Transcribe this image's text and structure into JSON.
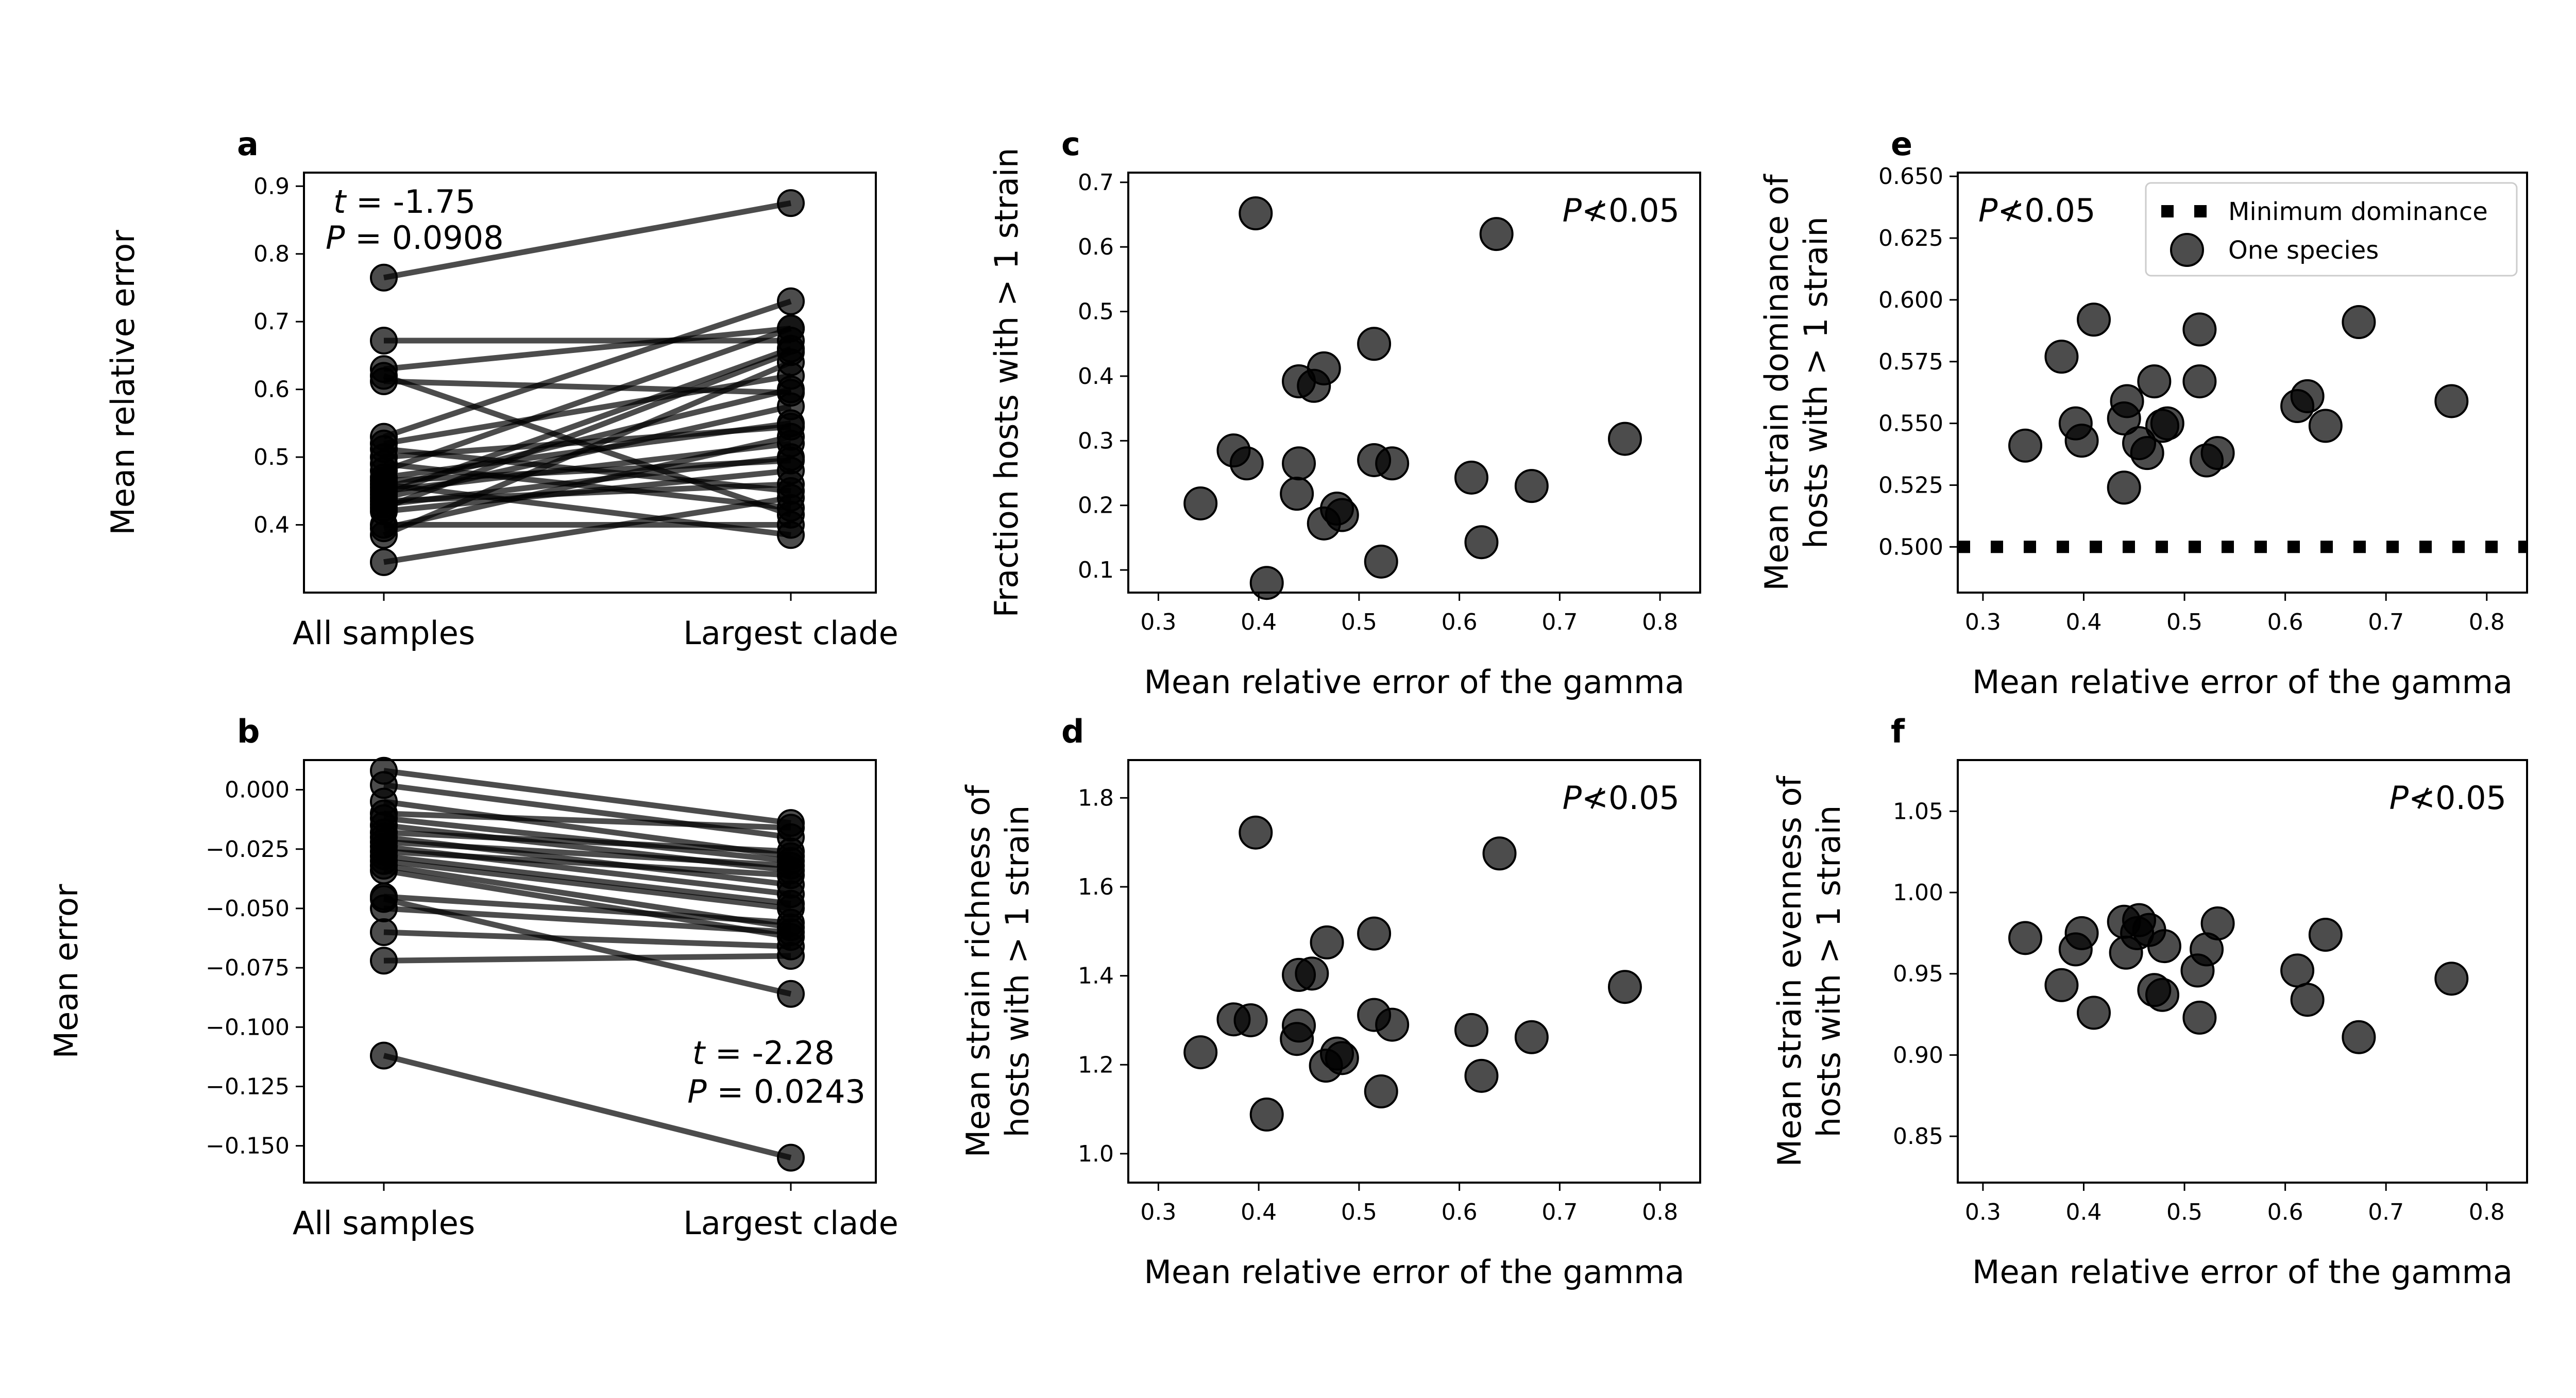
{
  "chart_data": [
    {
      "panel": "a",
      "type": "line",
      "xlabel": "",
      "ylabel": "Mean relative error",
      "categories": [
        "All samples",
        "Largest clade"
      ],
      "ylim": [
        0.3,
        0.92
      ],
      "yticks": [
        0.4,
        0.5,
        0.6,
        0.7,
        0.8,
        0.9
      ],
      "yticklabels": [
        "0.4",
        "0.5",
        "0.6",
        "0.7",
        "0.8",
        "0.9"
      ],
      "stat_t": "t = -1.75",
      "stat_p": "P = 0.0908",
      "pairs": [
        [
          0.765,
          0.875
        ],
        [
          0.672,
          0.672
        ],
        [
          0.63,
          0.69
        ],
        [
          0.62,
          0.415
        ],
        [
          0.612,
          0.595
        ],
        [
          0.53,
          0.73
        ],
        [
          0.52,
          0.62
        ],
        [
          0.512,
          0.45
        ],
        [
          0.5,
          0.545
        ],
        [
          0.49,
          0.425
        ],
        [
          0.48,
          0.69
        ],
        [
          0.47,
          0.55
        ],
        [
          0.465,
          0.495
        ],
        [
          0.46,
          0.385
        ],
        [
          0.455,
          0.6
        ],
        [
          0.45,
          0.52
        ],
        [
          0.445,
          0.66
        ],
        [
          0.44,
          0.575
        ],
        [
          0.435,
          0.46
        ],
        [
          0.43,
          0.5
        ],
        [
          0.425,
          0.655
        ],
        [
          0.42,
          0.48
        ],
        [
          0.4,
          0.4
        ],
        [
          0.395,
          0.53
        ],
        [
          0.385,
          0.64
        ],
        [
          0.345,
          0.44
        ]
      ]
    },
    {
      "panel": "b",
      "type": "line",
      "xlabel": "",
      "ylabel": "Mean error",
      "categories": [
        "All samples",
        "Largest clade"
      ],
      "ylim": [
        -0.1655,
        0.0125
      ],
      "yticks": [
        0.0,
        -0.025,
        -0.05,
        -0.075,
        -0.1,
        -0.125,
        -0.15
      ],
      "yticklabels": [
        "0.000",
        "−0.025",
        "−0.050",
        "−0.075",
        "−0.100",
        "−0.125",
        "−0.150"
      ],
      "stat_t": "t = -2.28",
      "stat_p": "P = 0.0243",
      "pairs": [
        [
          0.008,
          -0.014
        ],
        [
          0.002,
          -0.02
        ],
        [
          -0.005,
          -0.028
        ],
        [
          -0.01,
          -0.016
        ],
        [
          -0.012,
          -0.03
        ],
        [
          -0.015,
          -0.034
        ],
        [
          -0.018,
          -0.026
        ],
        [
          -0.02,
          -0.04
        ],
        [
          -0.022,
          -0.032
        ],
        [
          -0.024,
          -0.044
        ],
        [
          -0.026,
          -0.036
        ],
        [
          -0.028,
          -0.048
        ],
        [
          -0.03,
          -0.05
        ],
        [
          -0.032,
          -0.058
        ],
        [
          -0.034,
          -0.062
        ],
        [
          -0.045,
          -0.056
        ],
        [
          -0.05,
          -0.06
        ],
        [
          -0.06,
          -0.066
        ],
        [
          -0.046,
          -0.086
        ],
        [
          -0.072,
          -0.07
        ],
        [
          -0.112,
          -0.155
        ]
      ]
    },
    {
      "panel": "c",
      "type": "scatter",
      "xlabel": "Mean relative error of the gamma",
      "ylabel": "Fraction hosts with > 1 strain",
      "xlim": [
        0.27,
        0.84
      ],
      "ylim": [
        0.065,
        0.715
      ],
      "xticks": [
        0.3,
        0.4,
        0.5,
        0.6,
        0.7,
        0.8
      ],
      "xticklabels": [
        "0.3",
        "0.4",
        "0.5",
        "0.6",
        "0.7",
        "0.8"
      ],
      "yticks": [
        0.1,
        0.2,
        0.3,
        0.4,
        0.5,
        0.6,
        0.7
      ],
      "yticklabels": [
        "0.1",
        "0.2",
        "0.3",
        "0.4",
        "0.5",
        "0.6",
        "0.7"
      ],
      "annotation": "P≮0.05",
      "points": [
        [
          0.397,
          0.652
        ],
        [
          0.637,
          0.62
        ],
        [
          0.44,
          0.392
        ],
        [
          0.465,
          0.412
        ],
        [
          0.455,
          0.385
        ],
        [
          0.515,
          0.45
        ],
        [
          0.375,
          0.285
        ],
        [
          0.388,
          0.265
        ],
        [
          0.44,
          0.265
        ],
        [
          0.515,
          0.27
        ],
        [
          0.533,
          0.265
        ],
        [
          0.342,
          0.203
        ],
        [
          0.438,
          0.218
        ],
        [
          0.478,
          0.195
        ],
        [
          0.483,
          0.185
        ],
        [
          0.465,
          0.172
        ],
        [
          0.522,
          0.113
        ],
        [
          0.408,
          0.08
        ],
        [
          0.612,
          0.243
        ],
        [
          0.672,
          0.23
        ],
        [
          0.765,
          0.303
        ],
        [
          0.622,
          0.143
        ]
      ]
    },
    {
      "panel": "d",
      "type": "scatter",
      "xlabel": "Mean relative error of the gamma",
      "ylabel": "Mean strain richness of hosts with > 1 strain",
      "xlim": [
        0.27,
        0.84
      ],
      "ylim": [
        0.935,
        1.885
      ],
      "xticks": [
        0.3,
        0.4,
        0.5,
        0.6,
        0.7,
        0.8
      ],
      "xticklabels": [
        "0.3",
        "0.4",
        "0.5",
        "0.6",
        "0.7",
        "0.8"
      ],
      "yticks": [
        1.0,
        1.2,
        1.4,
        1.6,
        1.8
      ],
      "yticklabels": [
        "1.0",
        "1.2",
        "1.4",
        "1.6",
        "1.8"
      ],
      "annotation": "P≮0.05",
      "points": [
        [
          0.397,
          1.722
        ],
        [
          0.64,
          1.675
        ],
        [
          0.44,
          1.402
        ],
        [
          0.453,
          1.405
        ],
        [
          0.468,
          1.475
        ],
        [
          0.515,
          1.495
        ],
        [
          0.375,
          1.302
        ],
        [
          0.392,
          1.3
        ],
        [
          0.44,
          1.288
        ],
        [
          0.438,
          1.258
        ],
        [
          0.515,
          1.312
        ],
        [
          0.533,
          1.29
        ],
        [
          0.342,
          1.228
        ],
        [
          0.478,
          1.225
        ],
        [
          0.483,
          1.215
        ],
        [
          0.467,
          1.198
        ],
        [
          0.522,
          1.14
        ],
        [
          0.408,
          1.088
        ],
        [
          0.612,
          1.278
        ],
        [
          0.672,
          1.262
        ],
        [
          0.765,
          1.375
        ],
        [
          0.622,
          1.175
        ]
      ]
    },
    {
      "panel": "e",
      "type": "scatter",
      "xlabel": "Mean relative error of the gamma",
      "ylabel": "Mean strain dominance of hosts with > 1 strain",
      "xlim": [
        0.275,
        0.84
      ],
      "ylim": [
        0.4815,
        0.6515
      ],
      "xticks": [
        0.3,
        0.4,
        0.5,
        0.6,
        0.7,
        0.8
      ],
      "xticklabels": [
        "0.3",
        "0.4",
        "0.5",
        "0.6",
        "0.7",
        "0.8"
      ],
      "yticks": [
        0.5,
        0.525,
        0.55,
        0.575,
        0.6,
        0.625,
        0.65
      ],
      "yticklabels": [
        "0.500",
        "0.525",
        "0.550",
        "0.575",
        "0.600",
        "0.625",
        "0.650"
      ],
      "annotation": "P≮0.05",
      "reference_line": {
        "name": "Minimum dominance",
        "y": 0.5
      },
      "legend": {
        "position": "top-right",
        "entries": [
          "Minimum dominance",
          "One species"
        ]
      },
      "series_name": "One species",
      "points": [
        [
          0.342,
          0.541
        ],
        [
          0.378,
          0.577
        ],
        [
          0.392,
          0.55
        ],
        [
          0.398,
          0.543
        ],
        [
          0.41,
          0.592
        ],
        [
          0.44,
          0.552
        ],
        [
          0.443,
          0.559
        ],
        [
          0.44,
          0.524
        ],
        [
          0.455,
          0.542
        ],
        [
          0.463,
          0.538
        ],
        [
          0.47,
          0.567
        ],
        [
          0.478,
          0.549
        ],
        [
          0.483,
          0.55
        ],
        [
          0.515,
          0.588
        ],
        [
          0.515,
          0.567
        ],
        [
          0.522,
          0.535
        ],
        [
          0.533,
          0.538
        ],
        [
          0.612,
          0.557
        ],
        [
          0.622,
          0.561
        ],
        [
          0.64,
          0.549
        ],
        [
          0.673,
          0.591
        ],
        [
          0.765,
          0.559
        ]
      ]
    },
    {
      "panel": "f",
      "type": "scatter",
      "xlabel": "Mean relative error of the gamma",
      "ylabel": "Mean strain evenness of hosts with > 1 strain",
      "xlim": [
        0.275,
        0.84
      ],
      "ylim": [
        0.8215,
        1.0815
      ],
      "xticks": [
        0.3,
        0.4,
        0.5,
        0.6,
        0.7,
        0.8
      ],
      "xticklabels": [
        "0.3",
        "0.4",
        "0.5",
        "0.6",
        "0.7",
        "0.8"
      ],
      "yticks": [
        0.85,
        0.9,
        0.95,
        1.0,
        1.05
      ],
      "yticklabels": [
        "0.85",
        "0.90",
        "0.95",
        "1.00",
        "1.05"
      ],
      "annotation": "P≮0.05",
      "points": [
        [
          0.342,
          0.972
        ],
        [
          0.378,
          0.943
        ],
        [
          0.392,
          0.965
        ],
        [
          0.398,
          0.975
        ],
        [
          0.41,
          0.926
        ],
        [
          0.44,
          0.982
        ],
        [
          0.442,
          0.963
        ],
        [
          0.453,
          0.975
        ],
        [
          0.455,
          0.983
        ],
        [
          0.465,
          0.977
        ],
        [
          0.47,
          0.94
        ],
        [
          0.478,
          0.937
        ],
        [
          0.48,
          0.967
        ],
        [
          0.513,
          0.952
        ],
        [
          0.515,
          0.923
        ],
        [
          0.522,
          0.965
        ],
        [
          0.533,
          0.981
        ],
        [
          0.612,
          0.952
        ],
        [
          0.622,
          0.934
        ],
        [
          0.64,
          0.974
        ],
        [
          0.673,
          0.911
        ],
        [
          0.765,
          0.947
        ]
      ]
    }
  ]
}
